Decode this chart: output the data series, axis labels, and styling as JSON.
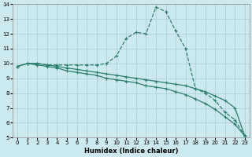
{
  "xlabel": "Humidex (Indice chaleur)",
  "xlim": [
    -0.5,
    23.5
  ],
  "ylim": [
    5,
    14
  ],
  "xticks": [
    0,
    1,
    2,
    3,
    4,
    5,
    6,
    7,
    8,
    9,
    10,
    11,
    12,
    13,
    14,
    15,
    16,
    17,
    18,
    19,
    20,
    21,
    22,
    23
  ],
  "yticks": [
    5,
    6,
    7,
    8,
    9,
    10,
    11,
    12,
    13,
    14
  ],
  "bg_color": "#cce9f0",
  "line_color": "#2e7d6e",
  "grid_color": "#aacdd6",
  "line1_x": [
    0,
    1,
    2,
    3,
    4,
    5,
    6,
    7,
    8,
    9,
    10,
    11,
    12,
    13,
    14,
    15,
    16,
    17,
    18,
    19,
    20,
    21,
    22,
    23
  ],
  "line1_y": [
    9.8,
    10.0,
    10.0,
    9.9,
    9.9,
    9.9,
    9.9,
    9.9,
    9.9,
    10.0,
    10.5,
    11.7,
    12.1,
    12.0,
    13.8,
    13.5,
    12.2,
    11.0,
    8.3,
    8.0,
    7.5,
    6.7,
    6.2,
    5.1
  ],
  "line2_x": [
    0,
    1,
    2,
    3,
    4,
    5,
    6,
    7,
    8,
    9,
    10,
    11,
    12,
    13,
    14,
    15,
    16,
    17,
    18,
    19,
    20,
    21,
    22,
    23
  ],
  "line2_y": [
    9.8,
    10.0,
    10.0,
    9.9,
    9.8,
    9.7,
    9.6,
    9.5,
    9.4,
    9.3,
    9.2,
    9.1,
    9.0,
    8.9,
    8.8,
    8.7,
    8.6,
    8.5,
    8.3,
    8.1,
    7.8,
    7.5,
    7.0,
    5.1
  ],
  "line3_x": [
    0,
    1,
    2,
    3,
    4,
    5,
    6,
    7,
    8,
    9,
    10,
    11,
    12,
    13,
    14,
    15,
    16,
    17,
    18,
    19,
    20,
    21,
    22,
    23
  ],
  "line3_y": [
    9.8,
    10.0,
    9.9,
    9.8,
    9.7,
    9.5,
    9.4,
    9.3,
    9.2,
    9.0,
    8.9,
    8.8,
    8.7,
    8.5,
    8.4,
    8.3,
    8.1,
    7.9,
    7.6,
    7.3,
    6.9,
    6.4,
    5.9,
    5.1
  ]
}
